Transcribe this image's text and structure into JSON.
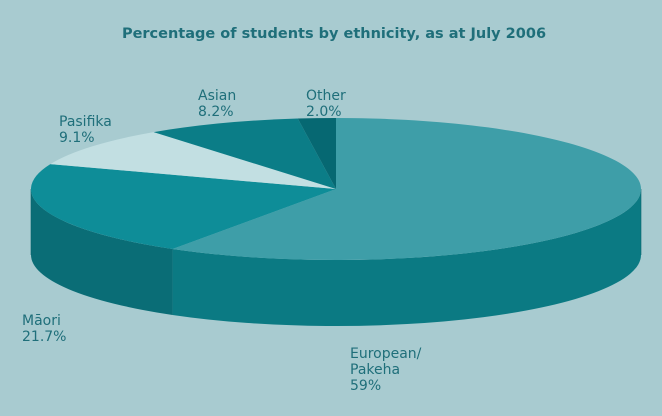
{
  "chart_data": {
    "type": "pie",
    "title": "Percentage of students by ethnicity, as at July 2006",
    "slices": [
      {
        "name": "European/ Pakeha",
        "label_lines": [
          "European/",
          "Pakeha",
          "59%"
        ],
        "value": 59,
        "color": "#3e9ea8",
        "side_color": "#0b7a83"
      },
      {
        "name": "Māori",
        "label_lines": [
          "Māori",
          "21.7%"
        ],
        "value": 21.7,
        "color": "#0e8d98",
        "side_color": "#0a6d76"
      },
      {
        "name": "Pasifika",
        "label_lines": [
          "Pasifika",
          "9.1%"
        ],
        "value": 9.1,
        "color": "#c2dfe2",
        "side_color": "#9cc6ca"
      },
      {
        "name": "Asian",
        "label_lines": [
          "Asian",
          "8.2%"
        ],
        "value": 8.2,
        "color": "#0b7d87",
        "side_color": "#0a6770"
      },
      {
        "name": "Other",
        "label_lines": [
          "Other",
          "2.0%"
        ],
        "value": 2.0,
        "color": "#066872",
        "side_color": "#055860"
      }
    ],
    "background": "#a8cbd0",
    "text_color": "#1f6f7a"
  }
}
